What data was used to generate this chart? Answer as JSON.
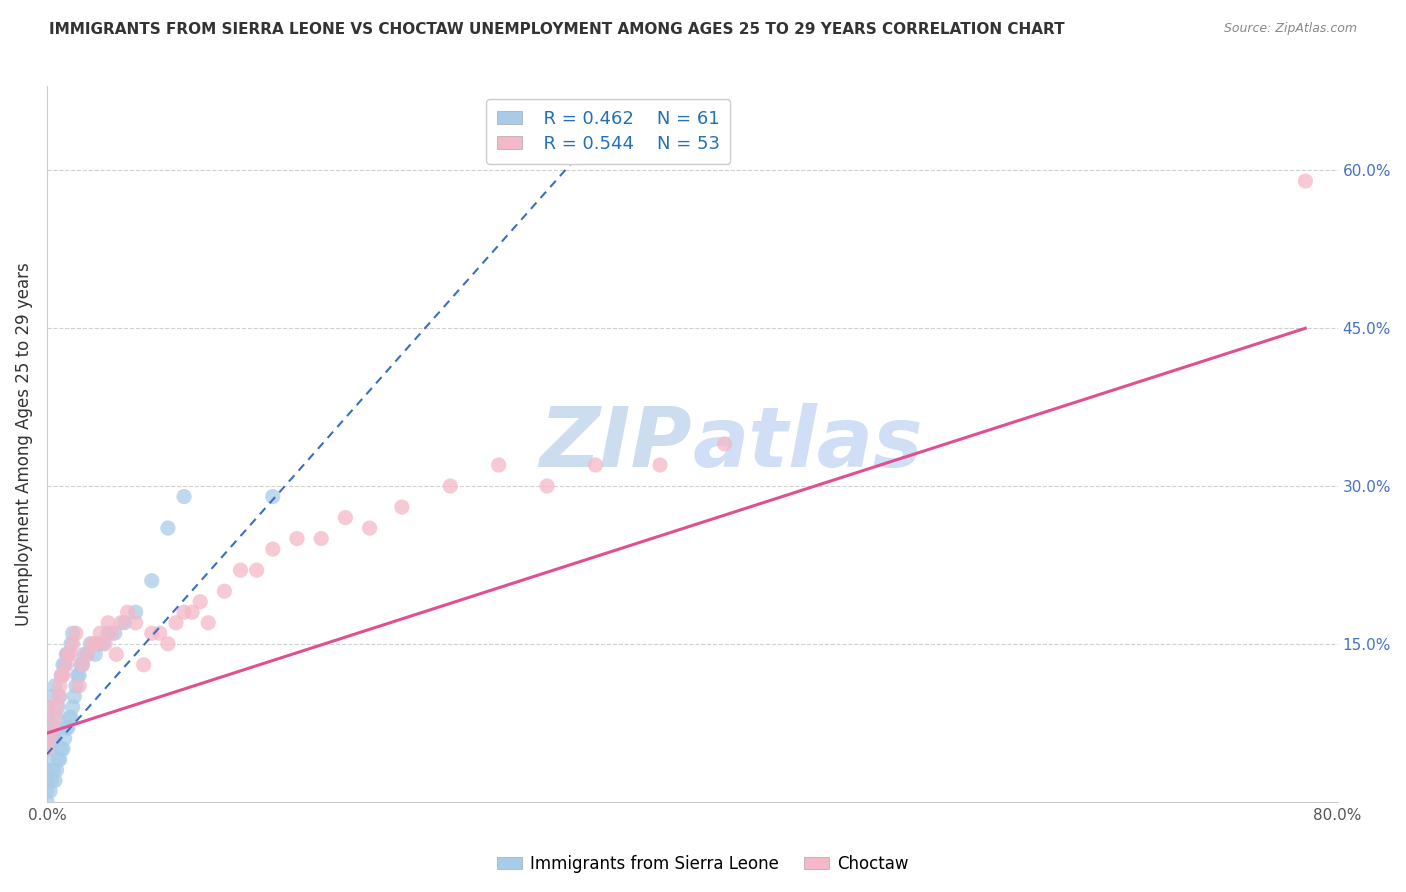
{
  "title": "IMMIGRANTS FROM SIERRA LEONE VS CHOCTAW UNEMPLOYMENT AMONG AGES 25 TO 29 YEARS CORRELATION CHART",
  "source": "Source: ZipAtlas.com",
  "ylabel": "Unemployment Among Ages 25 to 29 years",
  "xlim": [
    0,
    0.8
  ],
  "ylim": [
    0,
    0.68
  ],
  "yticks_right": [
    0.15,
    0.3,
    0.45,
    0.6
  ],
  "ytick_right_labels": [
    "15.0%",
    "30.0%",
    "45.0%",
    "60.0%"
  ],
  "legend_blue_r": "0.462",
  "legend_blue_n": "61",
  "legend_pink_r": "0.544",
  "legend_pink_n": "53",
  "blue_scatter_color": "#a8cce8",
  "pink_scatter_color": "#f4b8c8",
  "blue_line_color": "#3a6fbf",
  "pink_line_color": "#e05090",
  "watermark_color": "#ccddf0",
  "blue_scatter_x": [
    0.0,
    0.0,
    0.0,
    0.0,
    0.0,
    0.0,
    0.0,
    0.0,
    0.0,
    0.0,
    0.002,
    0.002,
    0.003,
    0.003,
    0.003,
    0.004,
    0.004,
    0.005,
    0.005,
    0.005,
    0.006,
    0.006,
    0.007,
    0.007,
    0.008,
    0.008,
    0.009,
    0.009,
    0.01,
    0.01,
    0.011,
    0.011,
    0.012,
    0.012,
    0.013,
    0.013,
    0.014,
    0.015,
    0.015,
    0.016,
    0.016,
    0.017,
    0.018,
    0.019,
    0.02,
    0.021,
    0.022,
    0.023,
    0.025,
    0.027,
    0.03,
    0.032,
    0.035,
    0.038,
    0.042,
    0.048,
    0.055,
    0.065,
    0.075,
    0.085,
    0.14
  ],
  "blue_scatter_y": [
    0.0,
    0.01,
    0.02,
    0.03,
    0.04,
    0.05,
    0.06,
    0.07,
    0.08,
    0.09,
    0.01,
    0.05,
    0.02,
    0.06,
    0.1,
    0.03,
    0.07,
    0.02,
    0.06,
    0.11,
    0.03,
    0.08,
    0.04,
    0.09,
    0.04,
    0.1,
    0.05,
    0.12,
    0.05,
    0.13,
    0.06,
    0.13,
    0.07,
    0.14,
    0.07,
    0.14,
    0.08,
    0.08,
    0.15,
    0.09,
    0.16,
    0.1,
    0.11,
    0.12,
    0.12,
    0.13,
    0.13,
    0.14,
    0.14,
    0.15,
    0.14,
    0.15,
    0.15,
    0.16,
    0.16,
    0.17,
    0.18,
    0.21,
    0.26,
    0.29,
    0.29
  ],
  "pink_scatter_x": [
    0.0,
    0.0,
    0.002,
    0.004,
    0.005,
    0.006,
    0.007,
    0.008,
    0.009,
    0.01,
    0.012,
    0.013,
    0.015,
    0.016,
    0.018,
    0.02,
    0.022,
    0.025,
    0.028,
    0.03,
    0.033,
    0.036,
    0.038,
    0.04,
    0.043,
    0.046,
    0.05,
    0.055,
    0.06,
    0.065,
    0.07,
    0.075,
    0.08,
    0.085,
    0.09,
    0.095,
    0.1,
    0.11,
    0.12,
    0.13,
    0.14,
    0.155,
    0.17,
    0.185,
    0.2,
    0.22,
    0.25,
    0.28,
    0.31,
    0.34,
    0.38,
    0.42,
    0.78
  ],
  "pink_scatter_y": [
    0.05,
    0.09,
    0.06,
    0.07,
    0.08,
    0.09,
    0.1,
    0.11,
    0.12,
    0.12,
    0.13,
    0.14,
    0.14,
    0.15,
    0.16,
    0.11,
    0.13,
    0.14,
    0.15,
    0.15,
    0.16,
    0.15,
    0.17,
    0.16,
    0.14,
    0.17,
    0.18,
    0.17,
    0.13,
    0.16,
    0.16,
    0.15,
    0.17,
    0.18,
    0.18,
    0.19,
    0.17,
    0.2,
    0.22,
    0.22,
    0.24,
    0.25,
    0.25,
    0.27,
    0.26,
    0.28,
    0.3,
    0.32,
    0.3,
    0.32,
    0.32,
    0.34,
    0.59
  ],
  "blue_trend_x": [
    0.0,
    0.35
  ],
  "blue_trend_y": [
    0.045,
    0.65
  ],
  "pink_trend_x": [
    0.0,
    0.78
  ],
  "pink_trend_y": [
    0.065,
    0.45
  ]
}
